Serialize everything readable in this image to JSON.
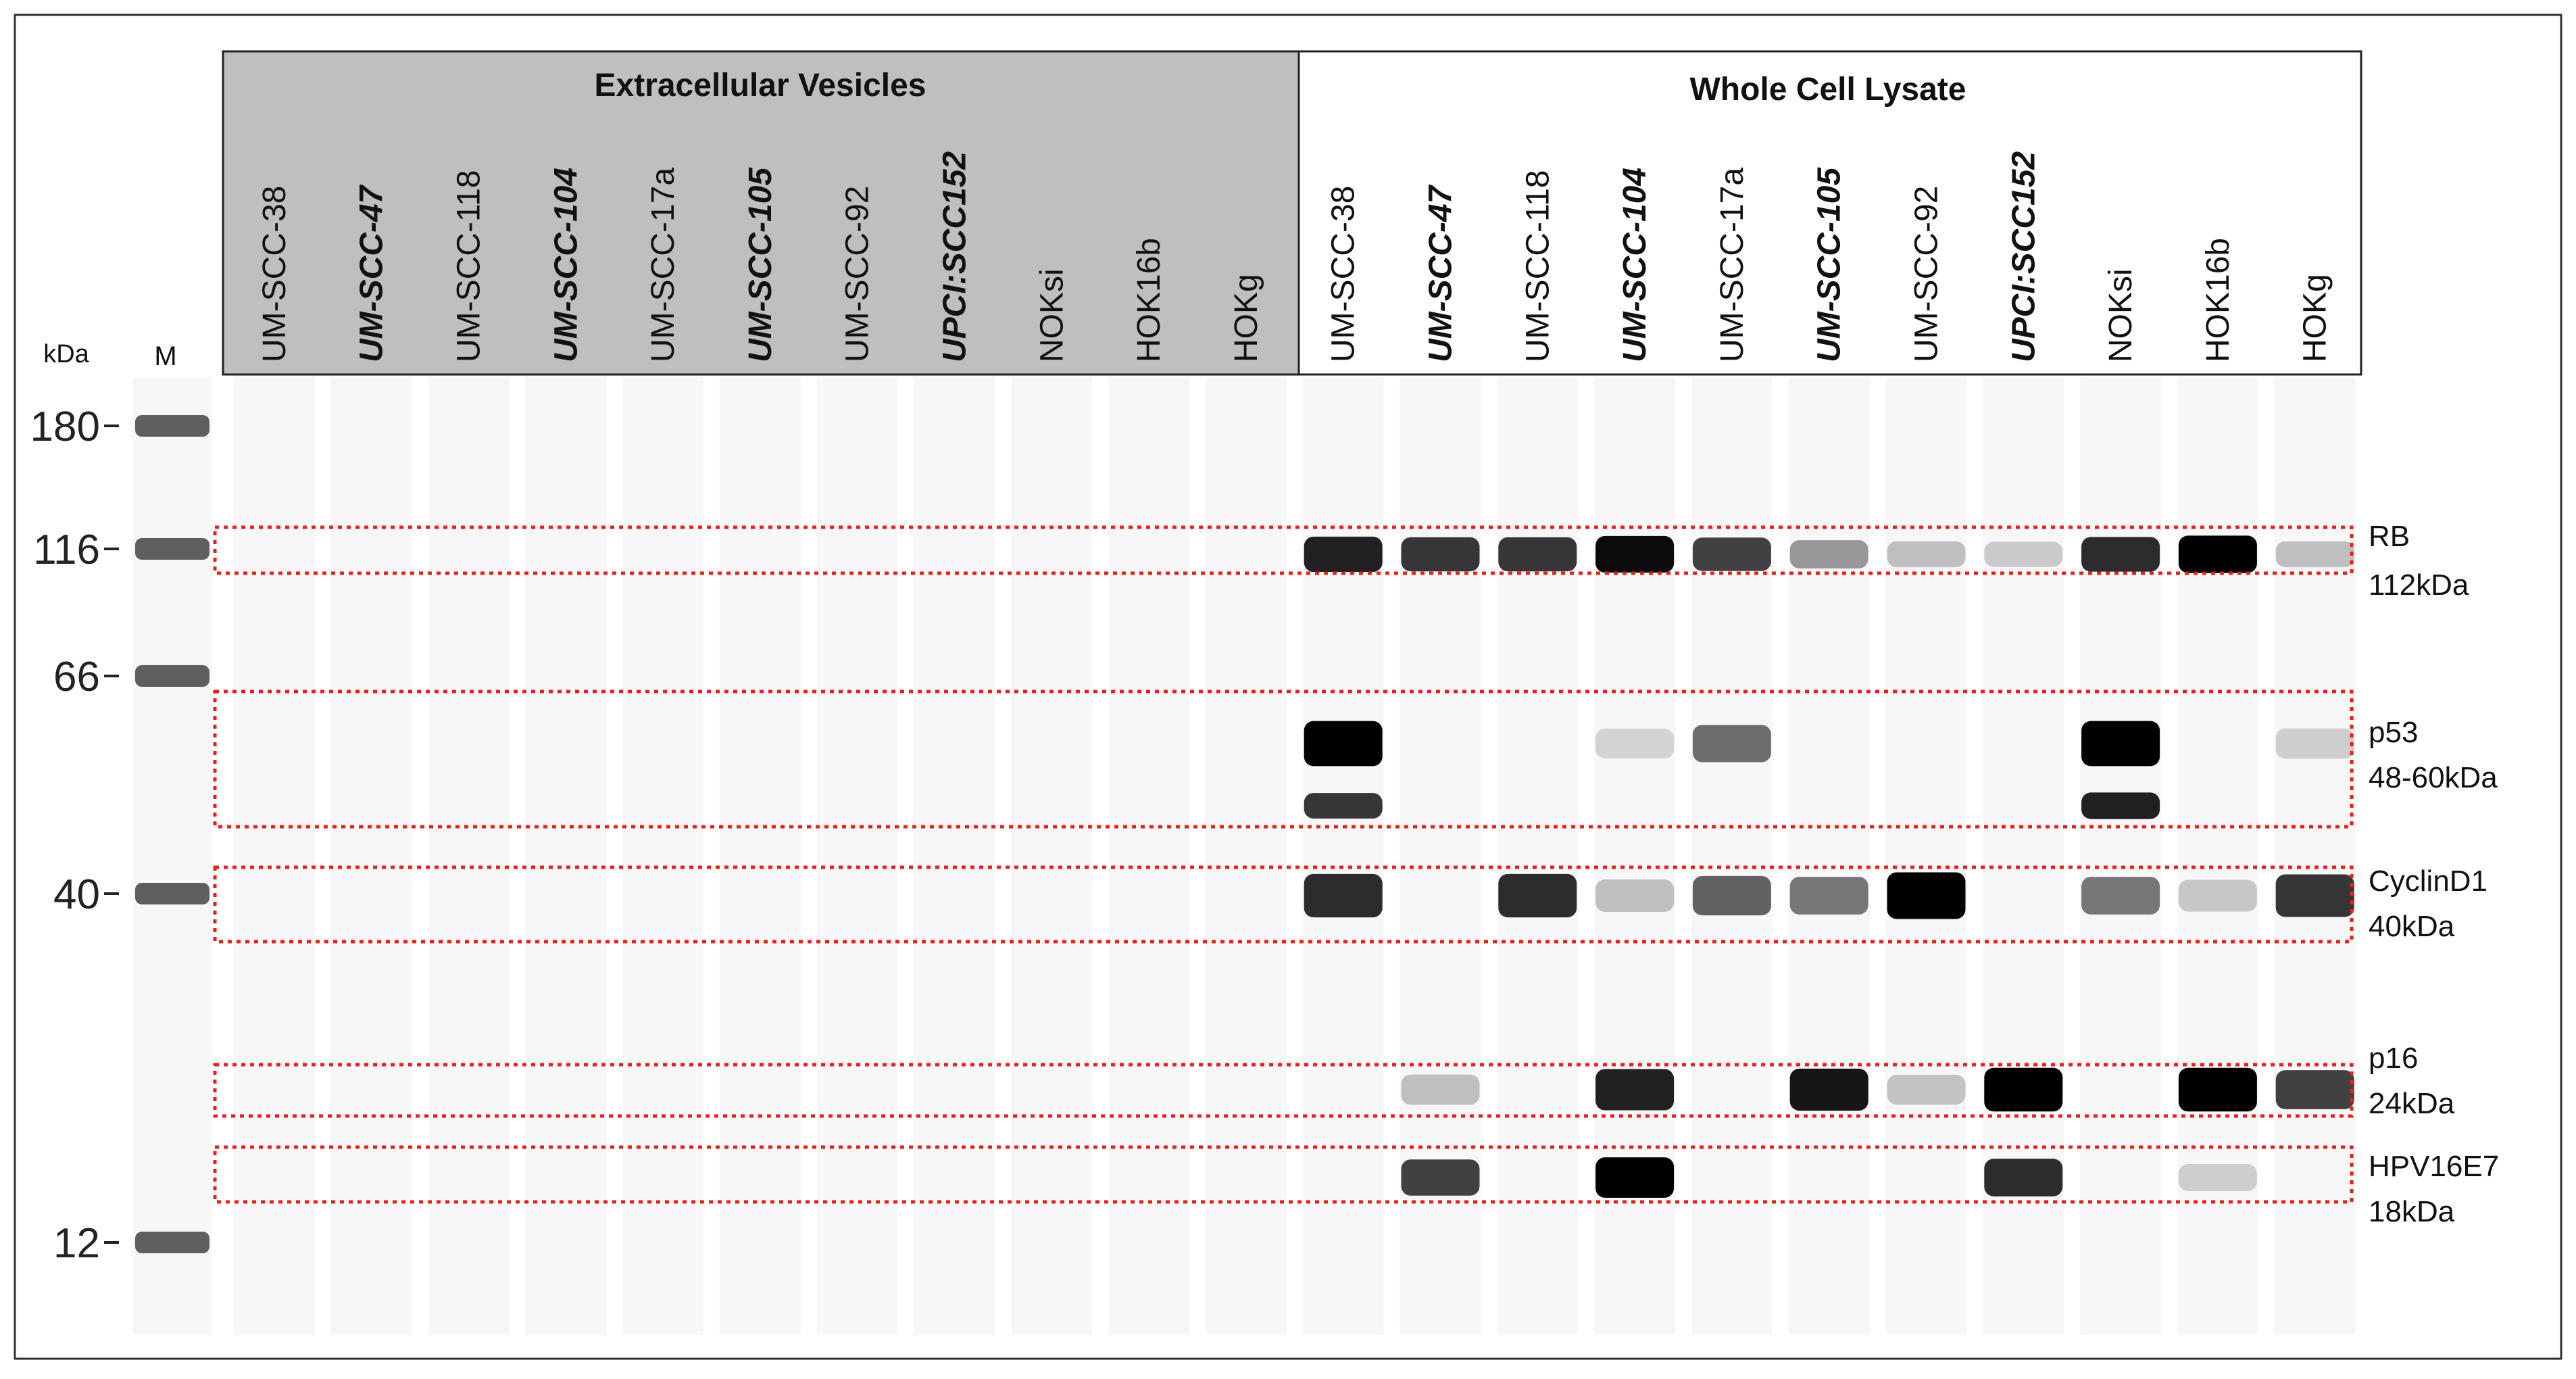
{
  "header": {
    "group_ev": "Extracellular Vesicles",
    "group_wcl": "Whole Cell Lysate"
  },
  "marker": {
    "kda_label": "kDa",
    "lane_label": "M",
    "ticks": [
      {
        "label": "180",
        "kda": 180
      },
      {
        "label": "116",
        "kda": 116
      },
      {
        "label": "66",
        "kda": 66
      },
      {
        "label": "40",
        "kda": 40
      },
      {
        "label": "12",
        "kda": 12
      }
    ]
  },
  "lanes": [
    {
      "label": "UM-SCC-38",
      "bold": false
    },
    {
      "label": "UM-SCC-47",
      "bold": true
    },
    {
      "label": "UM-SCC-118",
      "bold": false
    },
    {
      "label": "UM-SCC-104",
      "bold": true
    },
    {
      "label": "UM-SCC-17a",
      "bold": false
    },
    {
      "label": "UM-SCC-105",
      "bold": true
    },
    {
      "label": "UM-SCC-92",
      "bold": false
    },
    {
      "label": "UPCI:SCC152",
      "bold": true
    },
    {
      "label": "NOKsi",
      "bold": false
    },
    {
      "label": "HOK16b",
      "bold": false
    },
    {
      "label": "HOKg",
      "bold": false
    },
    {
      "label": "UM-SCC-38",
      "bold": false
    },
    {
      "label": "UM-SCC-47",
      "bold": true
    },
    {
      "label": "UM-SCC-118",
      "bold": false
    },
    {
      "label": "UM-SCC-104",
      "bold": true
    },
    {
      "label": "UM-SCC-17a",
      "bold": false
    },
    {
      "label": "UM-SCC-105",
      "bold": true
    },
    {
      "label": "UM-SCC-92",
      "bold": false
    },
    {
      "label": "UPCI:SCC152",
      "bold": true
    },
    {
      "label": "NOKsi",
      "bold": false
    },
    {
      "label": "HOK16b",
      "bold": false
    },
    {
      "label": "HOKg",
      "bold": false
    }
  ],
  "proteins": [
    {
      "name": "RB",
      "size": "112kDa"
    },
    {
      "name": "p53",
      "size": "48-60kDa"
    },
    {
      "name": "CyclinD1",
      "size": "40kDa"
    },
    {
      "name": "p16",
      "size": "24kDa"
    },
    {
      "name": "HPV16E7",
      "size": "18kDa"
    }
  ],
  "band_intensity": {
    "RB": [
      0,
      0,
      0,
      0,
      0,
      0,
      0,
      0,
      0,
      0,
      0,
      0.85,
      0.75,
      0.75,
      0.95,
      0.7,
      0.3,
      0.12,
      0.07,
      0.8,
      1.0,
      0.12
    ],
    "p53_upper": [
      0,
      0,
      0,
      0,
      0,
      0,
      0,
      0,
      0,
      0,
      0,
      1.0,
      0,
      0,
      0.03,
      0.5,
      0,
      0,
      0,
      1.0,
      0,
      0.05
    ],
    "p53_lower": [
      0,
      0,
      0,
      0,
      0,
      0,
      0,
      0,
      0,
      0,
      0,
      0.75,
      0,
      0,
      0,
      0,
      0,
      0,
      0,
      0.85,
      0,
      0
    ],
    "CyclinD1": [
      0,
      0,
      0,
      0,
      0,
      0,
      0,
      0,
      0,
      0,
      0,
      0.8,
      0,
      0.8,
      0.12,
      0.55,
      0.45,
      1.0,
      0,
      0.45,
      0.08,
      0.75
    ],
    "p16": [
      0,
      0,
      0,
      0,
      0,
      0,
      0,
      0,
      0,
      0,
      0,
      0,
      0.12,
      0,
      0.85,
      0,
      0.9,
      0.1,
      1.0,
      0,
      1.0,
      0.7
    ],
    "HPV16E7": [
      0,
      0,
      0,
      0,
      0,
      0,
      0,
      0,
      0,
      0,
      0,
      0,
      0.7,
      0,
      1.0,
      0,
      0,
      0,
      0.8,
      0,
      0.05,
      0
    ]
  },
  "colors": {
    "header_ev_bg": "#bfbfbf",
    "lane_bg": "#f7f7f7",
    "highlight_box": "#e8201a",
    "band": "#000000",
    "marker_band": "#444444"
  }
}
